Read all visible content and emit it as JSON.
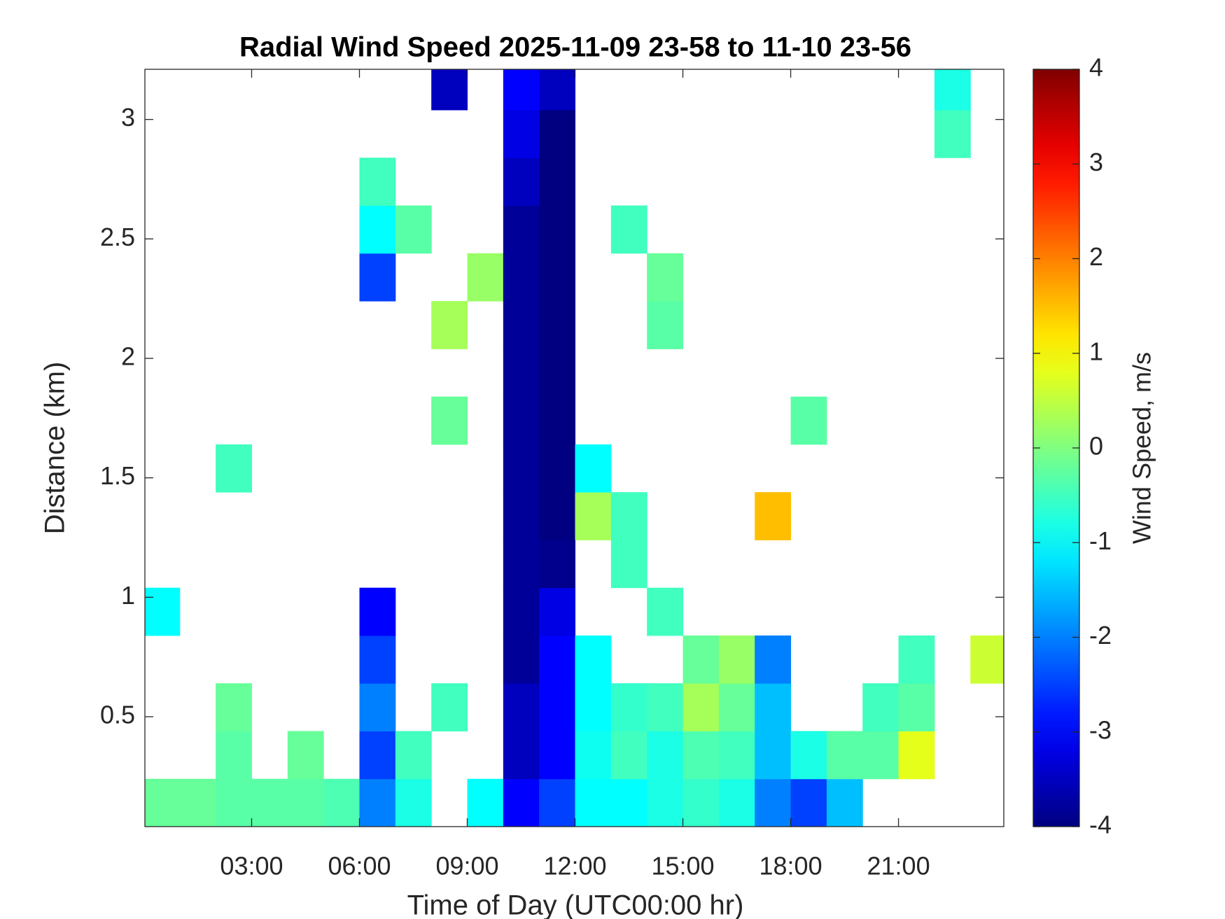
{
  "chart_data": {
    "type": "heatmap",
    "title": "Radial Wind Speed 2025-11-09 23-58 to 11-10 23-56",
    "xlabel": "Time of Day (UTC00:00 hr)",
    "ylabel": "Distance (km)",
    "colorbar_label": "Wind Speed, m/s",
    "colormap": "jet",
    "x": [
      0.5,
      1.5,
      2.5,
      3.5,
      4.5,
      5.5,
      6.5,
      7.5,
      8.5,
      9.5,
      10.5,
      11.5,
      12.5,
      13.5,
      14.5,
      15.5,
      16.5,
      17.5,
      18.5,
      19.5,
      20.5,
      21.5,
      22.5,
      23.5
    ],
    "y": [
      0.14,
      0.34,
      0.54,
      0.74,
      0.94,
      1.14,
      1.34,
      1.54,
      1.74,
      1.94,
      2.14,
      2.34,
      2.54,
      2.74,
      2.94,
      3.14
    ],
    "z": [
      [
        -0.2,
        -0.2,
        -0.3,
        -0.3,
        -0.3,
        -0.4,
        -2.0,
        -0.8,
        null,
        -1.0,
        -3.0,
        -2.5,
        -1.0,
        -1.0,
        -0.8,
        -0.6,
        -0.8,
        -2.0,
        -2.5,
        -1.5,
        null,
        null,
        null,
        null
      ],
      [
        null,
        null,
        -0.3,
        null,
        -0.2,
        null,
        -2.5,
        -0.5,
        null,
        null,
        -3.5,
        -3.0,
        -0.9,
        -0.5,
        -0.8,
        -0.4,
        -0.5,
        -1.5,
        -0.8,
        -0.3,
        -0.3,
        0.8,
        null,
        null
      ],
      [
        null,
        null,
        -0.2,
        null,
        null,
        null,
        -2.0,
        null,
        -0.5,
        null,
        -3.5,
        -3.0,
        -1.0,
        -0.6,
        -0.5,
        0.3,
        -0.2,
        -1.5,
        null,
        null,
        -0.5,
        -0.3,
        null,
        null
      ],
      [
        null,
        null,
        null,
        null,
        null,
        null,
        -2.5,
        null,
        null,
        null,
        -3.8,
        -3.0,
        -1.0,
        null,
        null,
        -0.2,
        0.2,
        -2.0,
        null,
        null,
        null,
        -0.5,
        null,
        0.6
      ],
      [
        -1.0,
        null,
        null,
        null,
        null,
        null,
        -3.0,
        null,
        null,
        null,
        -3.8,
        -3.2,
        null,
        null,
        -0.5,
        null,
        null,
        null,
        null,
        null,
        null,
        null,
        null,
        null
      ],
      [
        null,
        null,
        null,
        null,
        null,
        null,
        null,
        null,
        null,
        null,
        -3.8,
        -3.9,
        null,
        -0.5,
        null,
        null,
        null,
        null,
        null,
        null,
        null,
        null,
        null,
        null
      ],
      [
        null,
        null,
        null,
        null,
        null,
        null,
        null,
        null,
        null,
        null,
        -3.8,
        -4.0,
        0.3,
        -0.5,
        null,
        null,
        null,
        1.5,
        null,
        null,
        null,
        null,
        null,
        null
      ],
      [
        null,
        null,
        -0.5,
        null,
        null,
        null,
        null,
        null,
        null,
        null,
        -3.8,
        -4.0,
        -1.0,
        null,
        null,
        null,
        null,
        null,
        null,
        null,
        null,
        null,
        null,
        null
      ],
      [
        null,
        null,
        null,
        null,
        null,
        null,
        null,
        null,
        -0.2,
        null,
        -3.8,
        -4.0,
        null,
        null,
        null,
        null,
        null,
        null,
        -0.3,
        null,
        null,
        null,
        null,
        null
      ],
      [
        null,
        null,
        null,
        null,
        null,
        null,
        null,
        null,
        null,
        null,
        -3.8,
        -4.0,
        null,
        null,
        null,
        null,
        null,
        null,
        null,
        null,
        null,
        null,
        null,
        null
      ],
      [
        null,
        null,
        null,
        null,
        null,
        null,
        null,
        null,
        0.3,
        null,
        -3.8,
        -4.0,
        null,
        null,
        -0.3,
        null,
        null,
        null,
        null,
        null,
        null,
        null,
        null,
        null
      ],
      [
        null,
        null,
        null,
        null,
        null,
        null,
        -2.5,
        null,
        null,
        0.2,
        -3.8,
        -4.0,
        null,
        null,
        -0.2,
        null,
        null,
        null,
        null,
        null,
        null,
        null,
        null,
        null
      ],
      [
        null,
        null,
        null,
        null,
        null,
        null,
        -1.0,
        -0.3,
        null,
        null,
        -3.8,
        -4.0,
        null,
        -0.5,
        null,
        null,
        null,
        null,
        null,
        null,
        null,
        null,
        null,
        null
      ],
      [
        null,
        null,
        null,
        null,
        null,
        null,
        -0.5,
        null,
        null,
        null,
        -3.5,
        -4.0,
        null,
        null,
        null,
        null,
        null,
        null,
        null,
        null,
        null,
        null,
        null,
        null
      ],
      [
        null,
        null,
        null,
        null,
        null,
        null,
        null,
        null,
        null,
        null,
        -3.2,
        -4.0,
        null,
        null,
        null,
        null,
        null,
        null,
        null,
        null,
        null,
        null,
        -0.5,
        null
      ],
      [
        null,
        null,
        null,
        null,
        null,
        null,
        null,
        null,
        -3.5,
        null,
        -3.0,
        -3.5,
        null,
        null,
        null,
        null,
        null,
        null,
        null,
        null,
        null,
        null,
        -0.8,
        null
      ]
    ],
    "xlim": [
      0.03,
      23.93
    ],
    "xticks": [
      {
        "value": 3,
        "label": "03:00"
      },
      {
        "value": 6,
        "label": "06:00"
      },
      {
        "value": 9,
        "label": "09:00"
      },
      {
        "value": 12,
        "label": "12:00"
      },
      {
        "value": 15,
        "label": "15:00"
      },
      {
        "value": 18,
        "label": "18:00"
      },
      {
        "value": 21,
        "label": "21:00"
      }
    ],
    "ylim": [
      0.04,
      3.21
    ],
    "yticks": [
      0.5,
      1,
      1.5,
      2,
      2.5,
      3
    ],
    "clim": [
      -4,
      4
    ],
    "cticks": [
      -4,
      -3,
      -2,
      -1,
      0,
      1,
      2,
      3,
      4
    ]
  }
}
